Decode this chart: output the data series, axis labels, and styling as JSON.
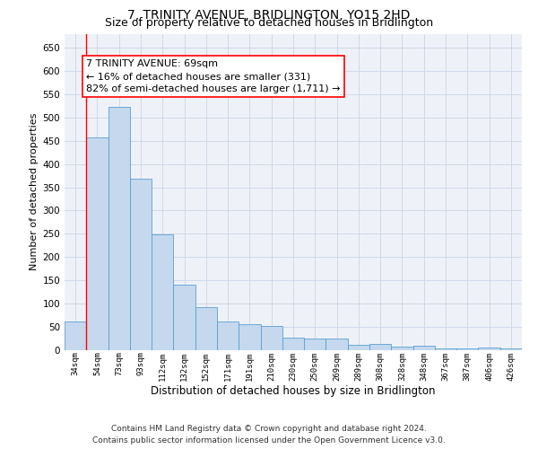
{
  "title": "7, TRINITY AVENUE, BRIDLINGTON, YO15 2HD",
  "subtitle": "Size of property relative to detached houses in Bridlington",
  "xlabel": "Distribution of detached houses by size in Bridlington",
  "ylabel": "Number of detached properties",
  "bar_color": "#c5d8ed",
  "bar_edge_color": "#5a9fd4",
  "grid_color": "#d0d8e8",
  "background_color": "#eef2f8",
  "annotation_text": "7 TRINITY AVENUE: 69sqm\n← 16% of detached houses are smaller (331)\n82% of semi-detached houses are larger (1,711) →",
  "annotation_box_color": "white",
  "annotation_box_edge_color": "red",
  "redline_x": 1,
  "categories": [
    "34sqm",
    "54sqm",
    "73sqm",
    "93sqm",
    "112sqm",
    "132sqm",
    "152sqm",
    "171sqm",
    "191sqm",
    "210sqm",
    "230sqm",
    "250sqm",
    "269sqm",
    "289sqm",
    "308sqm",
    "328sqm",
    "348sqm",
    "367sqm",
    "387sqm",
    "406sqm",
    "426sqm"
  ],
  "values": [
    62,
    457,
    522,
    368,
    248,
    140,
    92,
    62,
    56,
    53,
    27,
    26,
    26,
    12,
    13,
    7,
    10,
    4,
    4,
    6,
    4
  ],
  "ylim": [
    0,
    680
  ],
  "yticks": [
    0,
    50,
    100,
    150,
    200,
    250,
    300,
    350,
    400,
    450,
    500,
    550,
    600,
    650
  ],
  "footer": "Contains HM Land Registry data © Crown copyright and database right 2024.\nContains public sector information licensed under the Open Government Licence v3.0.",
  "title_fontsize": 10,
  "subtitle_fontsize": 9,
  "xlabel_fontsize": 8.5,
  "ylabel_fontsize": 8,
  "footer_fontsize": 6.5,
  "annotation_fontsize": 8
}
